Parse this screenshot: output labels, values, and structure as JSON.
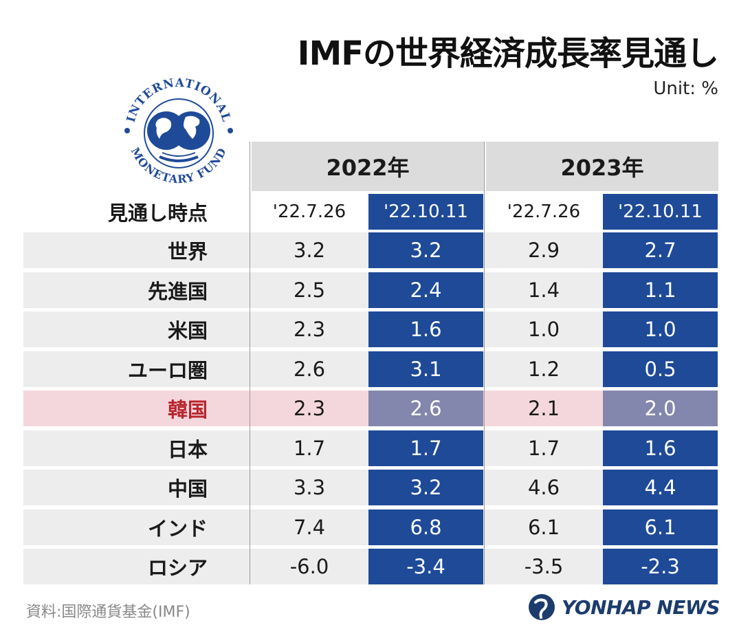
{
  "title": "IMFの世界経済成長率見通し",
  "unit": "Unit: %",
  "logo_text": "INTERNATIONAL MONETARY FUND",
  "source": "資料:国際通貨基金(IMF)",
  "brand": "YONHAP NEWS",
  "colors": {
    "blue": "#1e4a98",
    "korea_blue": "#8386ad",
    "korea_row": "#f4d7dc",
    "korea_text": "#b8262e",
    "row_gray": "#ededed",
    "year_head_gray": "#dcdcdc"
  },
  "chart_data": {
    "type": "table",
    "title": "IMFの世界経済成長率見通し",
    "unit": "Unit: %",
    "row_header_label": "見通し時点",
    "years": [
      "2022年",
      "2023年"
    ],
    "columns": [
      "'22.7.26",
      "'22.10.11",
      "'22.7.26",
      "'22.10.11"
    ],
    "highlighted_row": "韓国",
    "rows": [
      {
        "label": "世界",
        "values": [
          "3.2",
          "3.2",
          "2.9",
          "2.7"
        ]
      },
      {
        "label": "先進国",
        "values": [
          "2.5",
          "2.4",
          "1.4",
          "1.1"
        ]
      },
      {
        "label": "米国",
        "values": [
          "2.3",
          "1.6",
          "1.0",
          "1.0"
        ]
      },
      {
        "label": "ユーロ圏",
        "values": [
          "2.6",
          "3.1",
          "1.2",
          "0.5"
        ]
      },
      {
        "label": "韓国",
        "values": [
          "2.3",
          "2.6",
          "2.1",
          "2.0"
        ]
      },
      {
        "label": "日本",
        "values": [
          "1.7",
          "1.7",
          "1.7",
          "1.6"
        ]
      },
      {
        "label": "中国",
        "values": [
          "3.3",
          "3.2",
          "4.6",
          "4.4"
        ]
      },
      {
        "label": "インド",
        "values": [
          "7.4",
          "6.8",
          "6.1",
          "6.1"
        ]
      },
      {
        "label": "ロシア",
        "values": [
          "-6.0",
          "-3.4",
          "-3.5",
          "-2.3"
        ]
      }
    ]
  }
}
